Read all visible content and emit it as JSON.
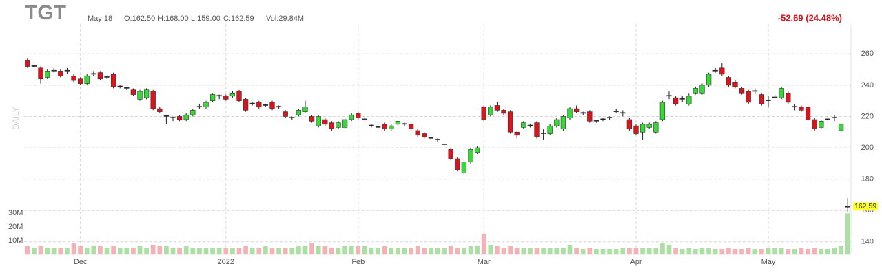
{
  "chart_data": {
    "type": "candlestick",
    "title": "TGT",
    "info": {
      "date": "May 18",
      "open": "O:162.50",
      "high": "H:168.00",
      "low": "L:159.00",
      "close": "C:162.59",
      "volume": "Vol:29.84M"
    },
    "change": "-52.69 (24.48%)",
    "y_label": "DAILY",
    "categories": [
      null,
      null,
      null,
      null,
      null,
      null,
      null,
      null,
      "Dec",
      null,
      null,
      null,
      null,
      null,
      null,
      null,
      null,
      null,
      null,
      null,
      null,
      null,
      null,
      null,
      null,
      null,
      null,
      null,
      null,
      null,
      "2022",
      null,
      null,
      null,
      null,
      null,
      null,
      null,
      null,
      null,
      null,
      null,
      null,
      null,
      null,
      null,
      null,
      null,
      null,
      null,
      "Feb",
      null,
      null,
      null,
      null,
      null,
      null,
      null,
      null,
      null,
      null,
      null,
      null,
      null,
      null,
      null,
      null,
      null,
      null,
      "Mar",
      null,
      null,
      null,
      null,
      null,
      null,
      null,
      null,
      null,
      null,
      null,
      null,
      null,
      null,
      null,
      null,
      null,
      null,
      null,
      null,
      null,
      null,
      "Apr",
      null,
      null,
      null,
      null,
      null,
      null,
      null,
      null,
      null,
      null,
      null,
      null,
      null,
      null,
      null,
      null,
      null,
      null,
      null,
      "May",
      null,
      null,
      null,
      null,
      null,
      null,
      null,
      null,
      null,
      null,
      null,
      null
    ],
    "open": [
      256,
      252,
      251,
      245,
      249,
      249,
      249,
      246,
      244,
      241,
      247,
      248,
      245,
      247,
      239,
      238,
      237,
      231,
      232,
      236,
      225,
      220,
      219,
      220,
      218,
      221,
      226,
      226,
      230,
      233,
      233,
      233,
      236,
      231,
      228,
      229,
      227,
      229,
      226,
      223,
      219,
      221,
      223,
      220,
      214,
      218,
      216,
      213,
      213,
      218,
      222,
      218,
      214,
      213,
      215,
      212,
      215,
      215,
      215,
      211,
      209,
      206,
      205,
      202,
      199,
      193,
      184,
      191,
      197,
      226,
      221,
      227,
      224,
      223,
      210,
      213,
      214,
      216,
      209,
      209,
      214,
      212,
      219,
      225,
      222,
      223,
      217,
      218,
      219,
      223,
      222,
      218,
      214,
      210,
      213,
      210,
      218,
      233,
      232,
      231,
      228,
      235,
      235,
      240,
      249,
      251,
      245,
      242,
      238,
      236,
      236,
      234,
      230,
      232,
      232,
      235,
      226,
      226,
      226,
      218,
      213,
      218,
      219,
      211,
      162.5
    ],
    "high": [
      257,
      253,
      252,
      250,
      251,
      250,
      251,
      247,
      245,
      247,
      249,
      249,
      246,
      248,
      240,
      239,
      238,
      237,
      238,
      237,
      226,
      221,
      220,
      221,
      222,
      225,
      228,
      230,
      235,
      234,
      234,
      236,
      237,
      232,
      229,
      230,
      228,
      230,
      227,
      224,
      220,
      225,
      230,
      221,
      221,
      219,
      217,
      217,
      219,
      222,
      223,
      220,
      215,
      214,
      216,
      215,
      218,
      216,
      216,
      212,
      210,
      207,
      206,
      203,
      200,
      194,
      192,
      200,
      201,
      227,
      227,
      229,
      225,
      224,
      211,
      217,
      215,
      217,
      212,
      215,
      219,
      221,
      226,
      227,
      223,
      224,
      218,
      219,
      220,
      225,
      224,
      219,
      215,
      216,
      216,
      217,
      230,
      236,
      233,
      233,
      235,
      239,
      241,
      248,
      251,
      254,
      246,
      243,
      239,
      237,
      238,
      235,
      233,
      234,
      239,
      236,
      228,
      227,
      227,
      219,
      218,
      221,
      221,
      216,
      168
    ],
    "low": [
      251,
      251,
      241,
      244,
      248,
      245,
      247,
      242,
      240,
      240,
      246,
      243,
      244,
      238,
      238,
      237,
      233,
      230,
      231,
      224,
      222,
      215,
      217,
      217,
      217,
      220,
      225,
      225,
      229,
      231,
      230,
      232,
      229,
      223,
      227,
      225,
      226,
      224,
      225,
      219,
      218,
      220,
      222,
      216,
      213,
      214,
      211,
      212,
      212,
      217,
      218,
      217,
      213,
      212,
      211,
      211,
      214,
      214,
      211,
      207,
      206,
      205,
      204,
      201,
      192,
      185,
      183,
      190,
      196,
      217,
      220,
      223,
      221,
      209,
      206,
      212,
      213,
      206,
      205,
      208,
      213,
      211,
      218,
      222,
      221,
      216,
      216,
      217,
      218,
      222,
      220,
      211,
      208,
      205,
      212,
      209,
      217,
      231,
      227,
      229,
      227,
      234,
      234,
      239,
      248,
      246,
      239,
      238,
      234,
      228,
      234,
      227,
      226,
      231,
      231,
      228,
      224,
      223,
      217,
      211,
      212,
      217,
      217,
      210,
      159
    ],
    "close": [
      252,
      252.5,
      244,
      249,
      249.5,
      246,
      249.5,
      243,
      241,
      246,
      247.5,
      244,
      245.5,
      239,
      239.5,
      238.5,
      234,
      236,
      237,
      225,
      223,
      220.5,
      219.5,
      218,
      221,
      224,
      226.5,
      229,
      234,
      233.5,
      231,
      235,
      230,
      224,
      228.5,
      226,
      227.5,
      225,
      226.5,
      220,
      219.5,
      224,
      226,
      217,
      220,
      215,
      212,
      216,
      218,
      221,
      219,
      218.5,
      214.5,
      213.5,
      212,
      214,
      217,
      215.5,
      212,
      208,
      207,
      206.5,
      205.5,
      202.5,
      193,
      186,
      191,
      199,
      200,
      218,
      226,
      224,
      222,
      210,
      208,
      216,
      214.5,
      207,
      209.5,
      214,
      218,
      220,
      225,
      223,
      222.5,
      217,
      217.5,
      218.5,
      219.5,
      223.5,
      222.5,
      212,
      209,
      215,
      215,
      216,
      229,
      233.5,
      228,
      231.5,
      233,
      238,
      240,
      247,
      249.5,
      247,
      240,
      239,
      235,
      229,
      236.5,
      228,
      230.5,
      232.5,
      238,
      229,
      226.5,
      224,
      218,
      212,
      217,
      218.5,
      219.5,
      215,
      162.59
    ],
    "volume": [
      6,
      5,
      6,
      5,
      5,
      5,
      5,
      8,
      6,
      5,
      6,
      6,
      5,
      6,
      5,
      5,
      5,
      6,
      5,
      7,
      6,
      6,
      5,
      5,
      6,
      5,
      5,
      5,
      5,
      5,
      5,
      5,
      5,
      6,
      5,
      5,
      6,
      5,
      5,
      5,
      5,
      6,
      6,
      8,
      6,
      6,
      5,
      5,
      6,
      6,
      6,
      6,
      5,
      5,
      6,
      5,
      5,
      5,
      5,
      6,
      5,
      5,
      5,
      5,
      6,
      5,
      5,
      6,
      6,
      15,
      7,
      6,
      5,
      6,
      5,
      5,
      5,
      5,
      5,
      5,
      5,
      5,
      7,
      5,
      4,
      5,
      4,
      4,
      4,
      4,
      5,
      5,
      5,
      5,
      5,
      5,
      8,
      7,
      5,
      4,
      5,
      4,
      5,
      5,
      4,
      4,
      5,
      4,
      4,
      5,
      4,
      4,
      5,
      5,
      5,
      4,
      4,
      5,
      4,
      5,
      4,
      4,
      5,
      6,
      29.84
    ],
    "up_color": "#39d839",
    "down_color": "#d8141c",
    "volume_up_color": "#acdfa4",
    "volume_down_color": "#f3b2b5",
    "ylim": [
      132,
      279
    ],
    "yticks": [
      140,
      160,
      180,
      200,
      220,
      240,
      260
    ],
    "volume_ylim": [
      0,
      40
    ],
    "volume_ticks": [
      {
        "value": 10,
        "label": "10M"
      },
      {
        "value": 20,
        "label": "20M"
      },
      {
        "value": 30,
        "label": "30M"
      }
    ],
    "grid": true
  }
}
